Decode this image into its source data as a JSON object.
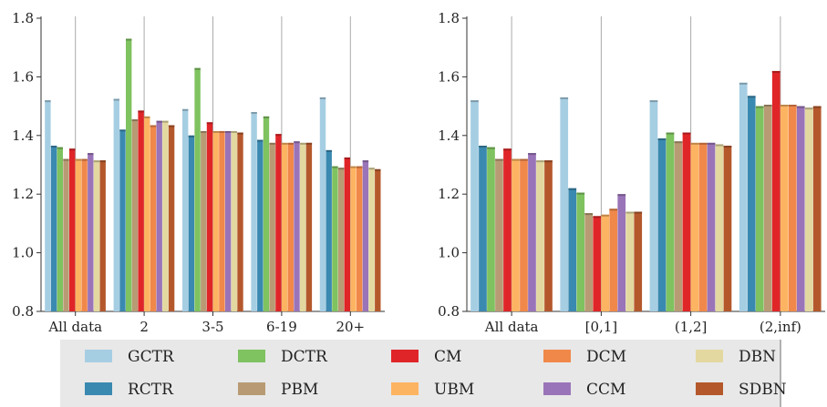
{
  "chart_data": [
    {
      "type": "bar",
      "categories": [
        "All data",
        "2",
        "3-5",
        "6-19",
        "20+"
      ],
      "ylim": [
        0.8,
        1.8
      ],
      "yticks": [
        "0.8",
        "1.0",
        "1.2",
        "1.4",
        "1.6",
        "1.8"
      ],
      "grid": "vertical lines at category centers",
      "series": [
        {
          "name": "GCTR",
          "color": "#a6cee3",
          "values": [
            1.52,
            1.525,
            1.49,
            1.48,
            1.53
          ]
        },
        {
          "name": "RCTR",
          "color": "#3a89b0",
          "values": [
            1.365,
            1.42,
            1.4,
            1.385,
            1.35
          ]
        },
        {
          "name": "DCTR",
          "color": "#7fc260",
          "values": [
            1.36,
            1.73,
            1.63,
            1.465,
            1.295
          ]
        },
        {
          "name": "PBM",
          "color": "#b89b74",
          "values": [
            1.32,
            1.455,
            1.415,
            1.375,
            1.29
          ]
        },
        {
          "name": "CM",
          "color": "#e02528",
          "values": [
            1.355,
            1.485,
            1.445,
            1.405,
            1.325
          ]
        },
        {
          "name": "UBM",
          "color": "#fdb462",
          "values": [
            1.32,
            1.465,
            1.415,
            1.375,
            1.295
          ]
        },
        {
          "name": "DCM",
          "color": "#f0884a",
          "values": [
            1.32,
            1.435,
            1.415,
            1.375,
            1.295
          ]
        },
        {
          "name": "CCM",
          "color": "#9a74b8",
          "values": [
            1.34,
            1.45,
            1.415,
            1.38,
            1.315
          ]
        },
        {
          "name": "DBN",
          "color": "#e3d8a0",
          "values": [
            1.315,
            1.45,
            1.415,
            1.375,
            1.29
          ]
        },
        {
          "name": "SDBN",
          "color": "#b4582c",
          "values": [
            1.315,
            1.435,
            1.41,
            1.375,
            1.285
          ]
        }
      ]
    },
    {
      "type": "bar",
      "categories": [
        "All data",
        "[0,1]",
        "(1,2]",
        "(2,inf)"
      ],
      "ylim": [
        0.8,
        1.8
      ],
      "yticks": [
        "0.8",
        "1.0",
        "1.2",
        "1.4",
        "1.6",
        "1.8"
      ],
      "grid": "vertical lines at category centers",
      "series": [
        {
          "name": "GCTR",
          "color": "#a6cee3",
          "values": [
            1.52,
            1.53,
            1.52,
            1.58
          ]
        },
        {
          "name": "RCTR",
          "color": "#3a89b0",
          "values": [
            1.365,
            1.22,
            1.39,
            1.535
          ]
        },
        {
          "name": "DCTR",
          "color": "#7fc260",
          "values": [
            1.36,
            1.205,
            1.41,
            1.5
          ]
        },
        {
          "name": "PBM",
          "color": "#b89b74",
          "values": [
            1.32,
            1.135,
            1.38,
            1.505
          ]
        },
        {
          "name": "CM",
          "color": "#e02528",
          "values": [
            1.355,
            1.125,
            1.41,
            1.62
          ]
        },
        {
          "name": "UBM",
          "color": "#fdb462",
          "values": [
            1.32,
            1.13,
            1.375,
            1.505
          ]
        },
        {
          "name": "DCM",
          "color": "#f0884a",
          "values": [
            1.32,
            1.15,
            1.375,
            1.505
          ]
        },
        {
          "name": "CCM",
          "color": "#9a74b8",
          "values": [
            1.34,
            1.2,
            1.375,
            1.5
          ]
        },
        {
          "name": "DBN",
          "color": "#e3d8a0",
          "values": [
            1.315,
            1.14,
            1.37,
            1.495
          ]
        },
        {
          "name": "SDBN",
          "color": "#b4582c",
          "values": [
            1.315,
            1.14,
            1.365,
            1.5
          ]
        }
      ]
    }
  ],
  "legend": {
    "placement": "bottom",
    "entries": [
      "GCTR",
      "DCTR",
      "CM",
      "DCM",
      "DBN",
      "RCTR",
      "PBM",
      "UBM",
      "CCM",
      "SDBN"
    ]
  }
}
